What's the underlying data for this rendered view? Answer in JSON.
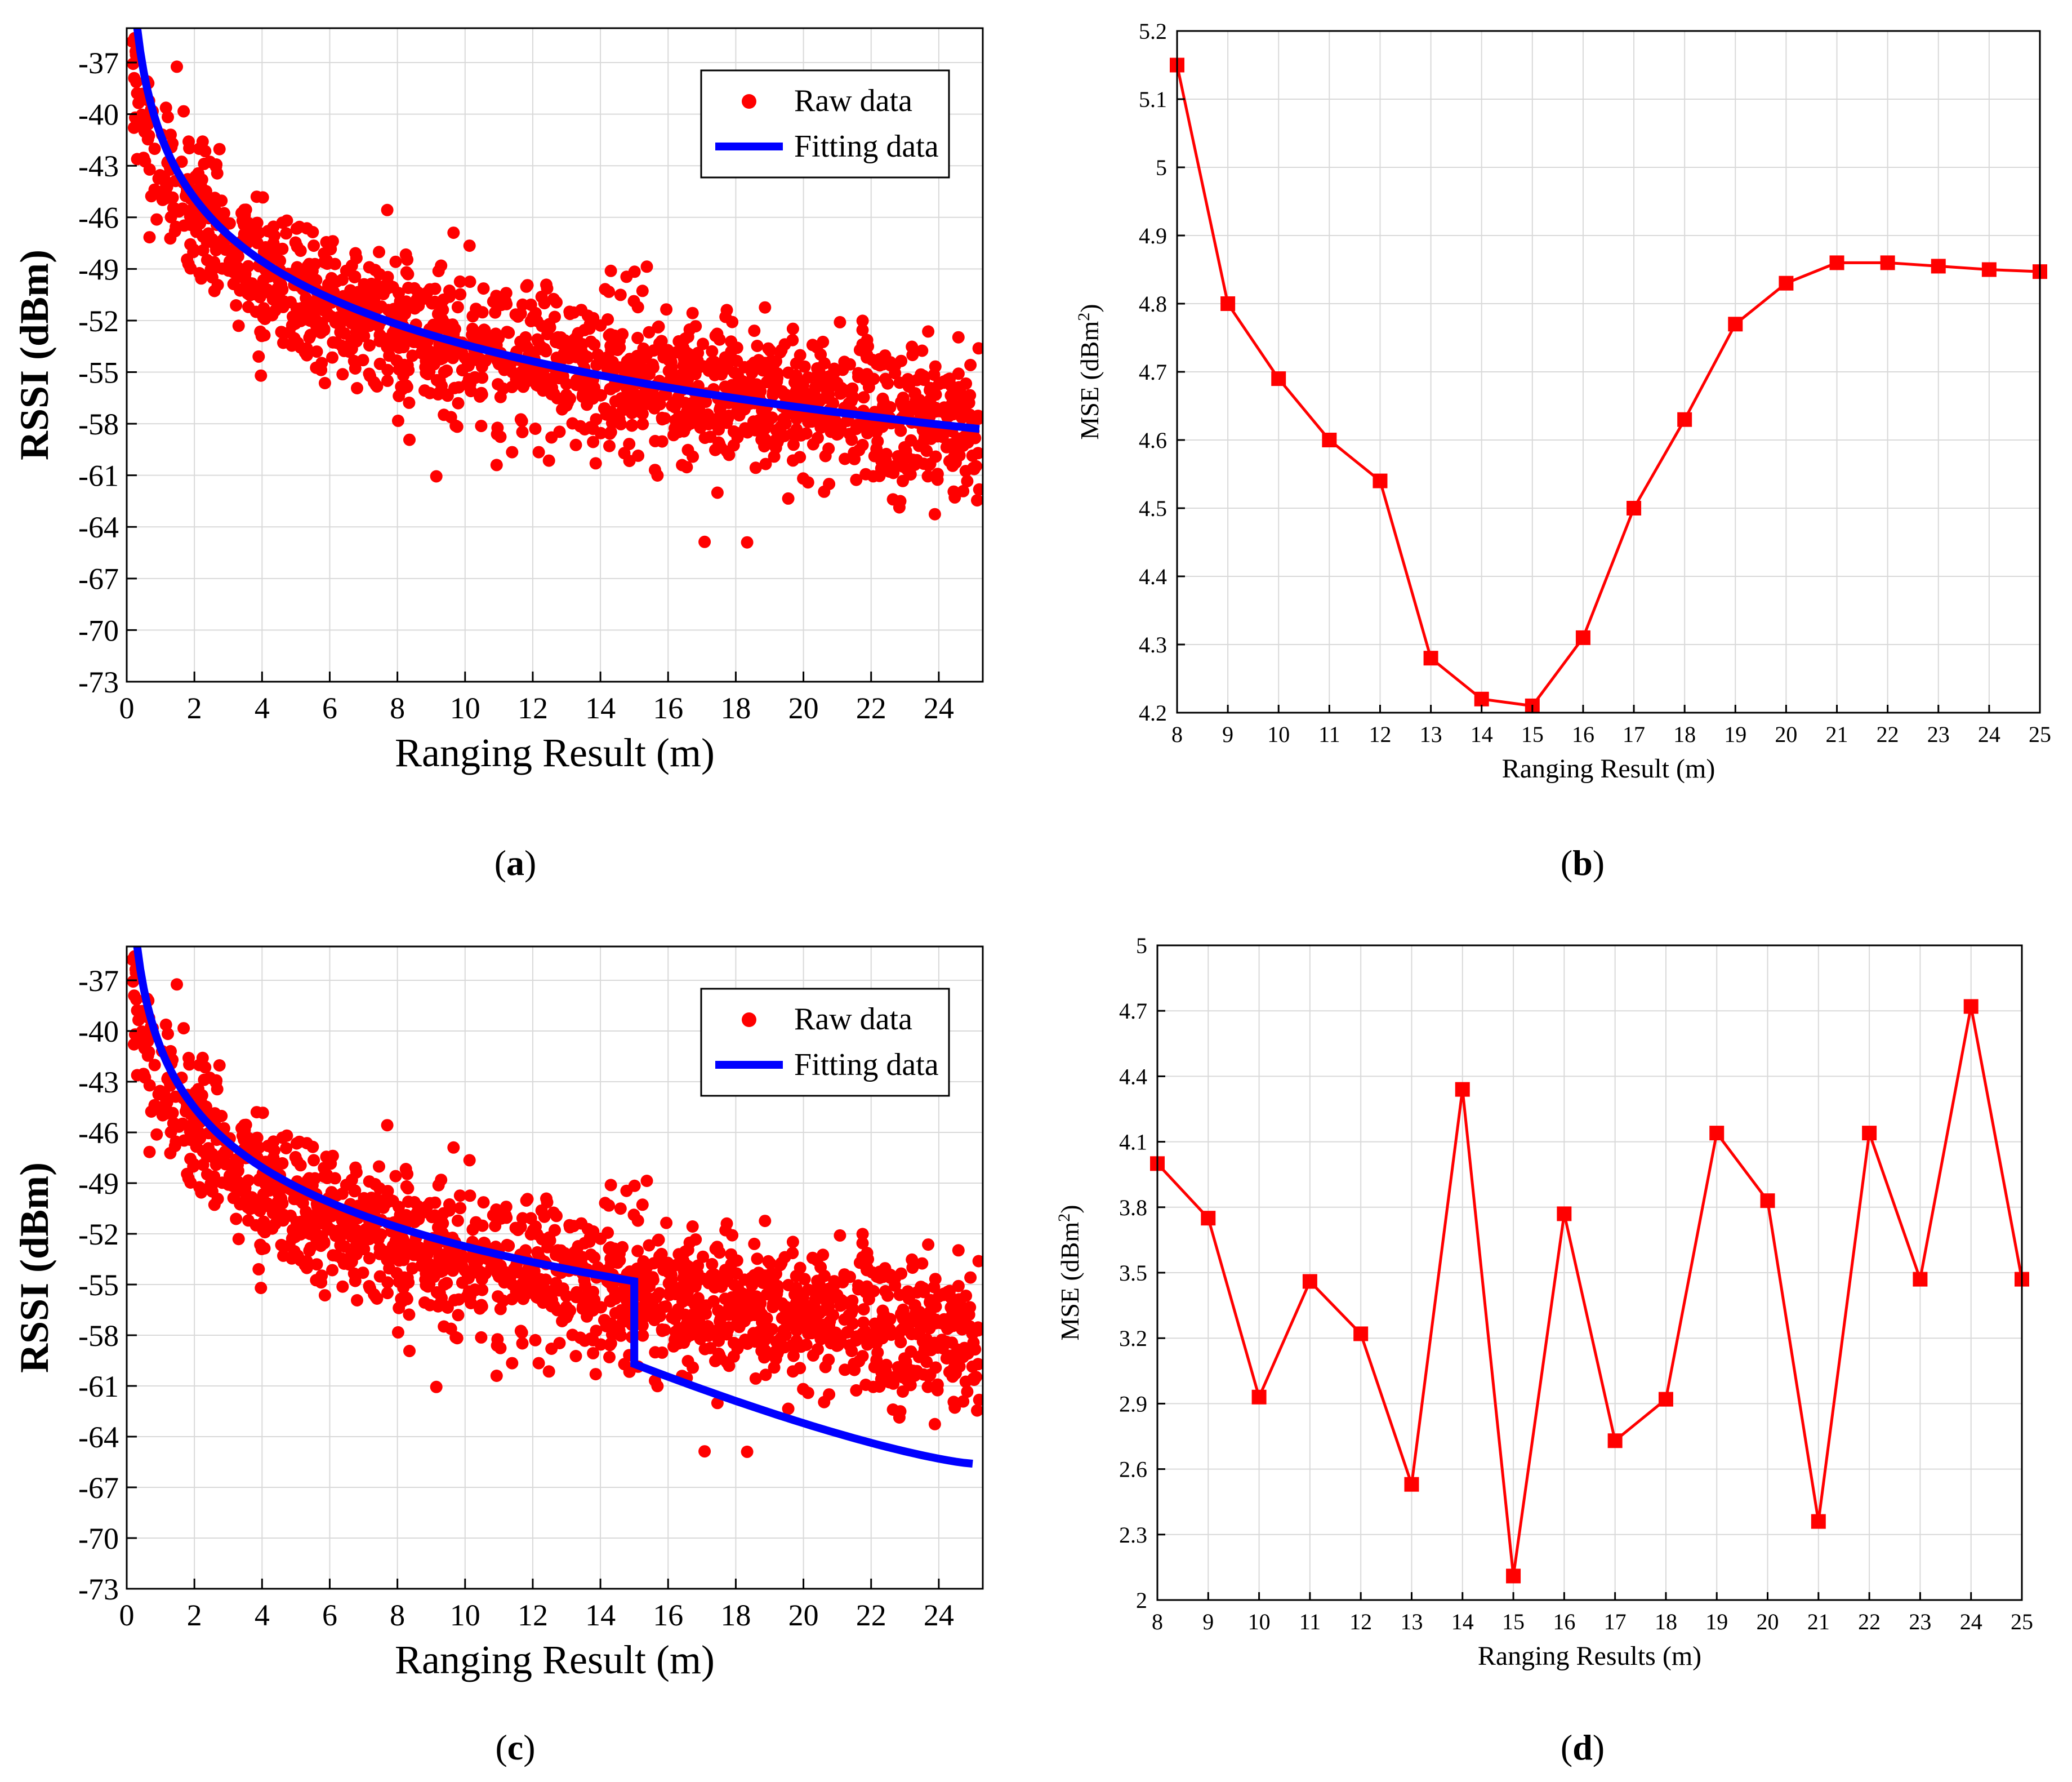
{
  "figure": {
    "colors": {
      "raw": "#ff0000",
      "fit": "#0000ff",
      "mse": "#ff0000",
      "grid": "#d9d9d9",
      "axis": "#000000"
    },
    "captions": [
      "a",
      "b",
      "c",
      "d"
    ]
  },
  "chart_data": [
    {
      "id": "a",
      "type": "scatter",
      "title": "",
      "xlabel": "Ranging Result (m)",
      "ylabel": "RSSI (dBm)",
      "xlim": [
        0,
        25.3
      ],
      "ylim": [
        -73,
        -35
      ],
      "xticks": [
        0,
        2,
        4,
        6,
        8,
        10,
        12,
        14,
        16,
        18,
        20,
        22,
        24
      ],
      "yticks": [
        -37,
        -40,
        -43,
        -46,
        -49,
        -52,
        -55,
        -58,
        -61,
        -64,
        -67,
        -70,
        -73
      ],
      "legend": {
        "position": "top-right",
        "entries": [
          "Raw data",
          "Fitting data"
        ]
      },
      "series": [
        {
          "name": "Raw data",
          "kind": "scatter",
          "model": {
            "a": -41.5,
            "b": -5.1,
            "noise_sd": 2.1,
            "n_points": 1600,
            "x_range": [
              0.05,
              25.2
            ]
          }
        },
        {
          "name": "Fitting data",
          "kind": "line",
          "model": {
            "a": -41.2,
            "b": -5.3,
            "x_range": [
              0.2,
              25.3
            ]
          }
        }
      ]
    },
    {
      "id": "b",
      "type": "line",
      "title": "",
      "xlabel": "Ranging Result (m)",
      "ylabel": "MSE (dBm",
      "ylabel_sup": "2",
      "ylabel_close": ")",
      "xlim": [
        8,
        25
      ],
      "ylim": [
        4.2,
        5.2
      ],
      "xticks": [
        8,
        9,
        10,
        11,
        12,
        13,
        14,
        15,
        16,
        17,
        18,
        19,
        20,
        21,
        22,
        23,
        24,
        25
      ],
      "yticks": [
        4.2,
        4.3,
        4.4,
        4.5,
        4.6,
        4.7,
        4.8,
        4.9,
        5,
        5.1,
        5.2
      ],
      "series": [
        {
          "name": "MSE",
          "x": [
            8,
            9,
            10,
            11,
            12,
            13,
            14,
            15,
            16,
            17,
            18,
            19,
            20,
            21,
            22,
            23,
            24,
            25
          ],
          "values": [
            5.15,
            4.8,
            4.69,
            4.6,
            4.54,
            4.28,
            4.22,
            4.21,
            4.31,
            4.5,
            4.63,
            4.77,
            4.83,
            4.86,
            4.86,
            4.855,
            4.85,
            4.847
          ]
        }
      ]
    },
    {
      "id": "c",
      "type": "scatter",
      "title": "",
      "xlabel": "Ranging Result (m)",
      "ylabel": "RSSI (dBm)",
      "xlim": [
        0,
        25.3
      ],
      "ylim": [
        -73,
        -35
      ],
      "xticks": [
        0,
        2,
        4,
        6,
        8,
        10,
        12,
        14,
        16,
        18,
        20,
        22,
        24
      ],
      "yticks": [
        -37,
        -40,
        -43,
        -46,
        -49,
        -52,
        -55,
        -58,
        -61,
        -64,
        -67,
        -70,
        -73
      ],
      "legend": {
        "position": "top-right",
        "entries": [
          "Raw data",
          "Fitting data"
        ]
      },
      "series": [
        {
          "name": "Raw data",
          "kind": "scatter",
          "model": {
            "a": -41.5,
            "b": -5.1,
            "noise_sd": 2.1,
            "n_points": 1600,
            "x_range": [
              0.05,
              25.2
            ]
          }
        },
        {
          "name": "Fitting data",
          "kind": "piecewise-line",
          "breakpoint": 15,
          "segments": [
            {
              "x_range": [
                0.2,
                15
              ],
              "a": -41.0,
              "b": -5.1
            },
            {
              "x_range": [
                15,
                25
              ],
              "start": -59.7,
              "end": -65.6
            }
          ]
        }
      ]
    },
    {
      "id": "d",
      "type": "line",
      "title": "",
      "xlabel": "Ranging Results (m)",
      "ylabel": "MSE (dBm",
      "ylabel_sup": "2",
      "ylabel_close": ")",
      "xlim": [
        8,
        25
      ],
      "ylim": [
        2,
        5
      ],
      "xticks": [
        8,
        9,
        10,
        11,
        12,
        13,
        14,
        15,
        16,
        17,
        18,
        19,
        20,
        21,
        22,
        23,
        24,
        25
      ],
      "yticks": [
        2,
        2.3,
        2.6,
        2.9,
        3.2,
        3.5,
        3.8,
        4.1,
        4.4,
        4.7,
        5
      ],
      "series": [
        {
          "name": "MSE",
          "x": [
            8,
            9,
            10,
            11,
            12,
            13,
            14,
            15,
            16,
            17,
            18,
            19,
            20,
            21,
            22,
            23,
            24,
            25
          ],
          "values": [
            4.0,
            3.75,
            2.93,
            3.46,
            3.22,
            2.53,
            4.34,
            2.11,
            3.77,
            2.73,
            2.92,
            4.14,
            3.83,
            2.36,
            4.14,
            3.47,
            4.72,
            3.47
          ]
        }
      ]
    }
  ]
}
